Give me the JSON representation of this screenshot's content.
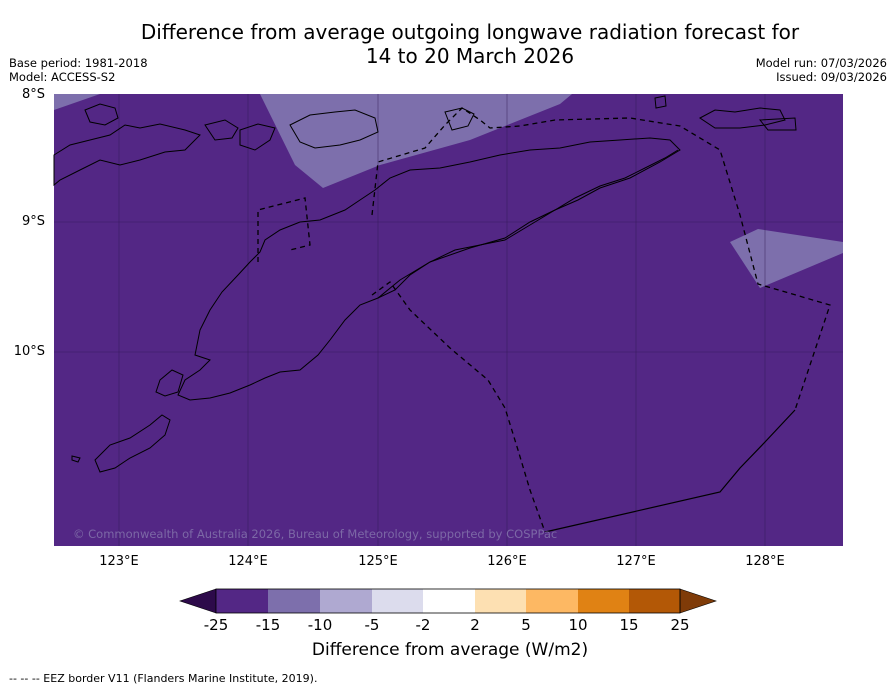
{
  "title_line1": "Difference from average outgoing longwave radiation forecast for",
  "title_line2": "14 to 20 March 2026",
  "meta_left": {
    "base_period": "Base period: 1981-2018",
    "model": "Model: ACCESS-S2"
  },
  "meta_right": {
    "model_run": "Model run: 07/03/2026",
    "issued": "Issued: 09/03/2026"
  },
  "lat_labels": [
    "8°S",
    "9°S",
    "10°S"
  ],
  "lon_labels": [
    "123°E",
    "124°E",
    "125°E",
    "126°E",
    "127°E",
    "128°E"
  ],
  "copyright": "© Commonwealth of Australia 2026, Bureau of Meteorology, supported by COSPPac",
  "colorbar": {
    "ticks": [
      "-25",
      "-15",
      "-10",
      "-5",
      "-2",
      "2",
      "5",
      "10",
      "15",
      "25"
    ],
    "title": "Difference from average (W/m2)",
    "colors": [
      "#2d0a4a",
      "#532785",
      "#7d6fac",
      "#afa9d1",
      "#dcdced",
      "#ffffff",
      "#fde0b2",
      "#fdb863",
      "#e08214",
      "#b35806",
      "#7f3b08"
    ]
  },
  "colors": {
    "background": "#532785",
    "light_band": "#7d6fac"
  },
  "footer": "--  --  -- EEZ border V11 (Flanders Marine Institute, 2019)."
}
